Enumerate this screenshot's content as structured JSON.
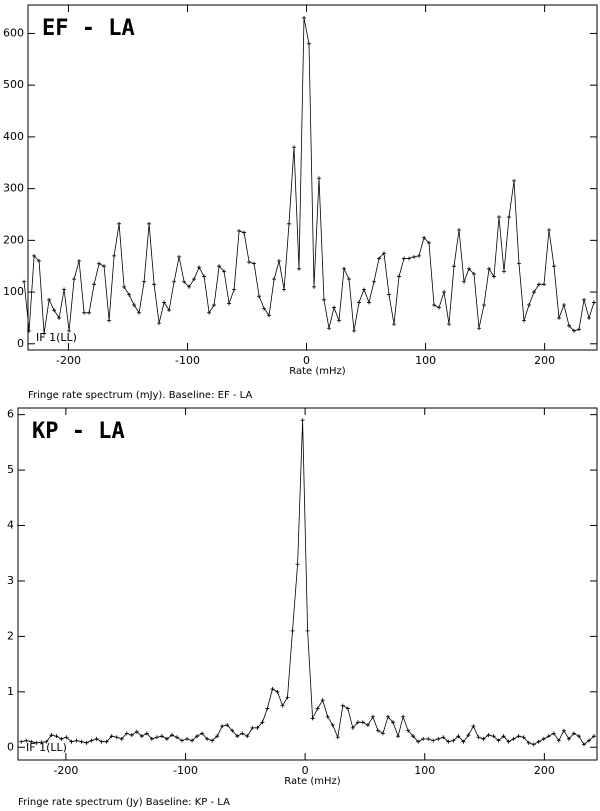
{
  "chart_data": [
    {
      "type": "line",
      "title": "EF - LA",
      "annotation": "IF 1(LL)",
      "x_label": "Rate (mHz)",
      "caption": "Fringe rate spectrum (mJy). Baseline: EF - LA",
      "xlim": [
        -234,
        244
      ],
      "xticks": [
        -200,
        -100,
        0,
        100,
        200
      ],
      "ylim": [
        -12,
        655
      ],
      "yticks": [
        0,
        100,
        200,
        300,
        400,
        500,
        600
      ],
      "x": [
        -237.3,
        -233.1,
        -228.9,
        -224.7,
        -220.5,
        -216.3,
        -212.1,
        -207.9,
        -203.7,
        -199.5,
        -195.3,
        -191.1,
        -186.9,
        -182.7,
        -178.5,
        -174.3,
        -170.1,
        -165.9,
        -161.7,
        -157.5,
        -153.3,
        -149.1,
        -144.9,
        -140.7,
        -136.5,
        -132.3,
        -128.1,
        -123.9,
        -119.7,
        -115.5,
        -111.3,
        -107.1,
        -102.9,
        -98.7,
        -94.5,
        -90.3,
        -86.1,
        -81.9,
        -77.7,
        -73.5,
        -69.3,
        -65.1,
        -60.9,
        -56.7,
        -52.5,
        -48.3,
        -44.1,
        -39.9,
        -35.7,
        -31.5,
        -27.3,
        -23.1,
        -18.9,
        -14.7,
        -10.5,
        -6.3,
        -2.1,
        2.1,
        6.3,
        10.5,
        14.7,
        18.9,
        23.1,
        27.3,
        31.5,
        35.7,
        39.9,
        44.1,
        48.3,
        52.5,
        56.7,
        60.9,
        65.1,
        69.3,
        73.5,
        77.7,
        81.9,
        86.1,
        90.3,
        94.5,
        98.7,
        102.9,
        107.1,
        111.3,
        115.5,
        119.7,
        123.9,
        128.1,
        132.3,
        136.5,
        140.7,
        144.9,
        149.1,
        153.3,
        157.5,
        161.7,
        165.9,
        170.1,
        174.3,
        178.5,
        182.7,
        186.9,
        191.1,
        195.3,
        199.5,
        203.7,
        207.9,
        212.1,
        216.3,
        220.5,
        224.7,
        228.9,
        233.1,
        237.3,
        241.5
      ],
      "series": [
        {
          "color": "#000000",
          "values": [
            120,
            25,
            170,
            160,
            20,
            85,
            65,
            50,
            105,
            25,
            125,
            160,
            60,
            60,
            115,
            155,
            150,
            45,
            170,
            232,
            110,
            95,
            75,
            60,
            120,
            232,
            115,
            40,
            80,
            65,
            120,
            168,
            120,
            110,
            125,
            148,
            130,
            60,
            75,
            150,
            140,
            78,
            105,
            218,
            215,
            158,
            155,
            92,
            68,
            55,
            125,
            160,
            105,
            232,
            380,
            145,
            630,
            580,
            110,
            320,
            85,
            30,
            70,
            45,
            145,
            125,
            25,
            80,
            105,
            80,
            120,
            165,
            175,
            95,
            38,
            130,
            165,
            165,
            168,
            170,
            205,
            195,
            75,
            70,
            100,
            38,
            150,
            220,
            120,
            145,
            135,
            30,
            75,
            145,
            130,
            245,
            140,
            245,
            315,
            155,
            45,
            75,
            100,
            115,
            115,
            220,
            150,
            50,
            75,
            35,
            25,
            28,
            85,
            50,
            80
          ]
        }
      ]
    },
    {
      "type": "line",
      "title": "KP - LA",
      "annotation": "IF 1(LL)",
      "x_label": "Rate (mHz)",
      "caption": "Fringe rate spectrum (Jy)   Baseline: KP - LA",
      "xlim": [
        -240,
        244
      ],
      "xticks": [
        -200,
        -100,
        0,
        100,
        200
      ],
      "ylim": [
        -0.23,
        6.12
      ],
      "yticks": [
        0,
        1,
        2,
        3,
        4,
        5,
        6
      ],
      "x": [
        -237.3,
        -233.1,
        -228.9,
        -224.7,
        -220.5,
        -216.3,
        -212.1,
        -207.9,
        -203.7,
        -199.5,
        -195.3,
        -191.1,
        -186.9,
        -182.7,
        -178.5,
        -174.3,
        -170.1,
        -165.9,
        -161.7,
        -157.5,
        -153.3,
        -149.1,
        -144.9,
        -140.7,
        -136.5,
        -132.3,
        -128.1,
        -123.9,
        -119.7,
        -115.5,
        -111.3,
        -107.1,
        -102.9,
        -98.7,
        -94.5,
        -90.3,
        -86.1,
        -81.9,
        -77.7,
        -73.5,
        -69.3,
        -65.1,
        -60.9,
        -56.7,
        -52.5,
        -48.3,
        -44.1,
        -39.9,
        -35.7,
        -31.5,
        -27.3,
        -23.1,
        -18.9,
        -14.7,
        -10.5,
        -6.3,
        -2.1,
        2.1,
        6.3,
        10.5,
        14.7,
        18.9,
        23.1,
        27.3,
        31.5,
        35.7,
        39.9,
        44.1,
        48.3,
        52.5,
        56.7,
        60.9,
        65.1,
        69.3,
        73.5,
        77.7,
        81.9,
        86.1,
        90.3,
        94.5,
        98.7,
        102.9,
        107.1,
        111.3,
        115.5,
        119.7,
        123.9,
        128.1,
        132.3,
        136.5,
        140.7,
        144.9,
        149.1,
        153.3,
        157.5,
        161.7,
        165.9,
        170.1,
        174.3,
        178.5,
        182.7,
        186.9,
        191.1,
        195.3,
        199.5,
        203.7,
        207.9,
        212.1,
        216.3,
        220.5,
        224.7,
        228.9,
        233.1,
        237.3,
        241.5
      ],
      "series": [
        {
          "color": "#000000",
          "values": [
            0.1,
            0.12,
            0.1,
            0.08,
            0.09,
            0.1,
            0.22,
            0.2,
            0.15,
            0.18,
            0.1,
            0.12,
            0.1,
            0.08,
            0.12,
            0.15,
            0.1,
            0.1,
            0.2,
            0.18,
            0.15,
            0.25,
            0.22,
            0.28,
            0.2,
            0.25,
            0.15,
            0.18,
            0.2,
            0.15,
            0.22,
            0.18,
            0.12,
            0.15,
            0.12,
            0.2,
            0.25,
            0.15,
            0.12,
            0.2,
            0.38,
            0.4,
            0.3,
            0.2,
            0.25,
            0.2,
            0.35,
            0.35,
            0.45,
            0.7,
            1.05,
            1.0,
            0.75,
            0.9,
            2.1,
            3.3,
            5.9,
            2.1,
            0.52,
            0.7,
            0.85,
            0.55,
            0.4,
            0.18,
            0.75,
            0.7,
            0.35,
            0.45,
            0.45,
            0.4,
            0.55,
            0.3,
            0.25,
            0.55,
            0.45,
            0.2,
            0.55,
            0.3,
            0.2,
            0.1,
            0.15,
            0.15,
            0.12,
            0.15,
            0.18,
            0.1,
            0.12,
            0.2,
            0.1,
            0.22,
            0.38,
            0.18,
            0.15,
            0.22,
            0.2,
            0.12,
            0.2,
            0.1,
            0.15,
            0.2,
            0.18,
            0.08,
            0.05,
            0.1,
            0.15,
            0.2,
            0.25,
            0.12,
            0.3,
            0.15,
            0.25,
            0.2,
            0.05,
            0.12,
            0.2
          ]
        }
      ]
    }
  ]
}
